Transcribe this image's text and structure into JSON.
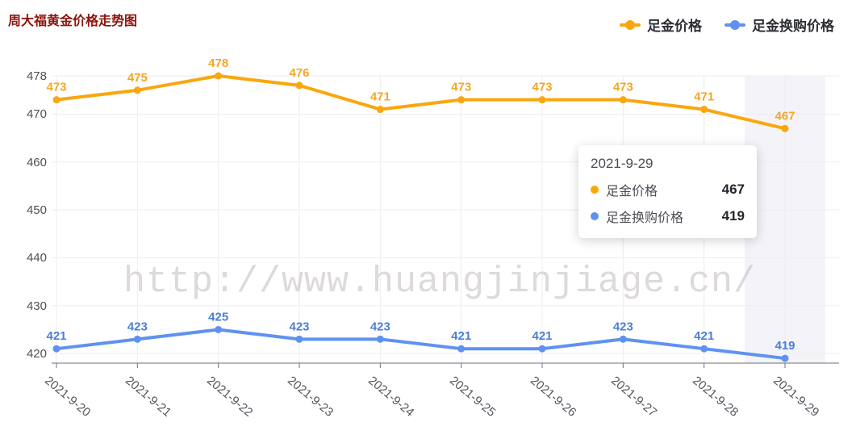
{
  "title": "周大福黄金价格走势图",
  "legend": {
    "items": [
      {
        "label": "足金价格",
        "color": "#F9A70D"
      },
      {
        "label": "足金换购价格",
        "color": "#5F92F0"
      }
    ]
  },
  "chart_data": {
    "type": "line",
    "title": "周大福黄金价格走势图",
    "categories": [
      "2021-9-20",
      "2021-9-21",
      "2021-9-22",
      "2021-9-23",
      "2021-9-24",
      "2021-9-25",
      "2021-9-26",
      "2021-9-27",
      "2021-9-28",
      "2021-9-29"
    ],
    "series": [
      {
        "name": "足金价格",
        "color": "#F9A70D",
        "label_color": "#F5A623",
        "values": [
          473,
          475,
          478,
          476,
          471,
          473,
          473,
          473,
          471,
          467
        ]
      },
      {
        "name": "足金换购价格",
        "color": "#5F92F0",
        "label_color": "#4A7EDB",
        "values": [
          421,
          423,
          425,
          423,
          423,
          421,
          421,
          423,
          421,
          419
        ]
      }
    ],
    "y_ticks": [
      420,
      430,
      440,
      450,
      460,
      470,
      478
    ],
    "ylim": [
      418,
      478
    ],
    "grid": true,
    "legend_position": "top-right",
    "xlabel": "",
    "ylabel": "",
    "highlight_category": "2021-9-29"
  },
  "tooltip": {
    "date": "2021-9-29",
    "rows": [
      {
        "name": "足金价格",
        "value": "467",
        "color": "#F9A70D"
      },
      {
        "name": "足金换购价格",
        "value": "419",
        "color": "#5F92F0"
      }
    ]
  },
  "watermark": "http://www.huangjinjiage.cn/",
  "colors": {
    "title": "#8C140C",
    "axis_line": "#6E7079",
    "grid_line": "#EDEDF2",
    "highlight_band": "rgba(120,120,160,0.08)",
    "axis_label": "#55565E"
  }
}
